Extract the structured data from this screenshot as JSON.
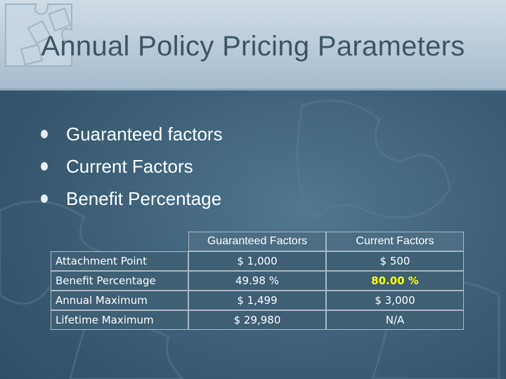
{
  "slide": {
    "title": "Annual Policy Pricing Parameters",
    "bullets": [
      {
        "label": "Guaranteed factors"
      },
      {
        "label": "Current Factors"
      },
      {
        "label": "Benefit Percentage"
      }
    ]
  },
  "table": {
    "headers": [
      "Guaranteed Factors",
      "Current Factors"
    ],
    "rows": [
      {
        "label": "Attachment Point",
        "guaranteed": "$ 1,000",
        "current": "$ 500"
      },
      {
        "label": "Benefit Percentage",
        "guaranteed": "49.98 %",
        "current": "80.00 %"
      },
      {
        "label": "Annual Maximum",
        "guaranteed": "$ 1,499",
        "current": "$ 3,000"
      },
      {
        "label": "Lifetime Maximum",
        "guaranteed": "$ 29,980",
        "current": "N/A"
      }
    ]
  },
  "colors": {
    "background": "#3e6179",
    "header_band": "#b7c8d6",
    "title_text": "#3e5566",
    "highlight_text": "#ffff00"
  },
  "icons": {
    "decoration": "puzzle-pieces-icon",
    "bullet": "bullet-dot-icon"
  }
}
